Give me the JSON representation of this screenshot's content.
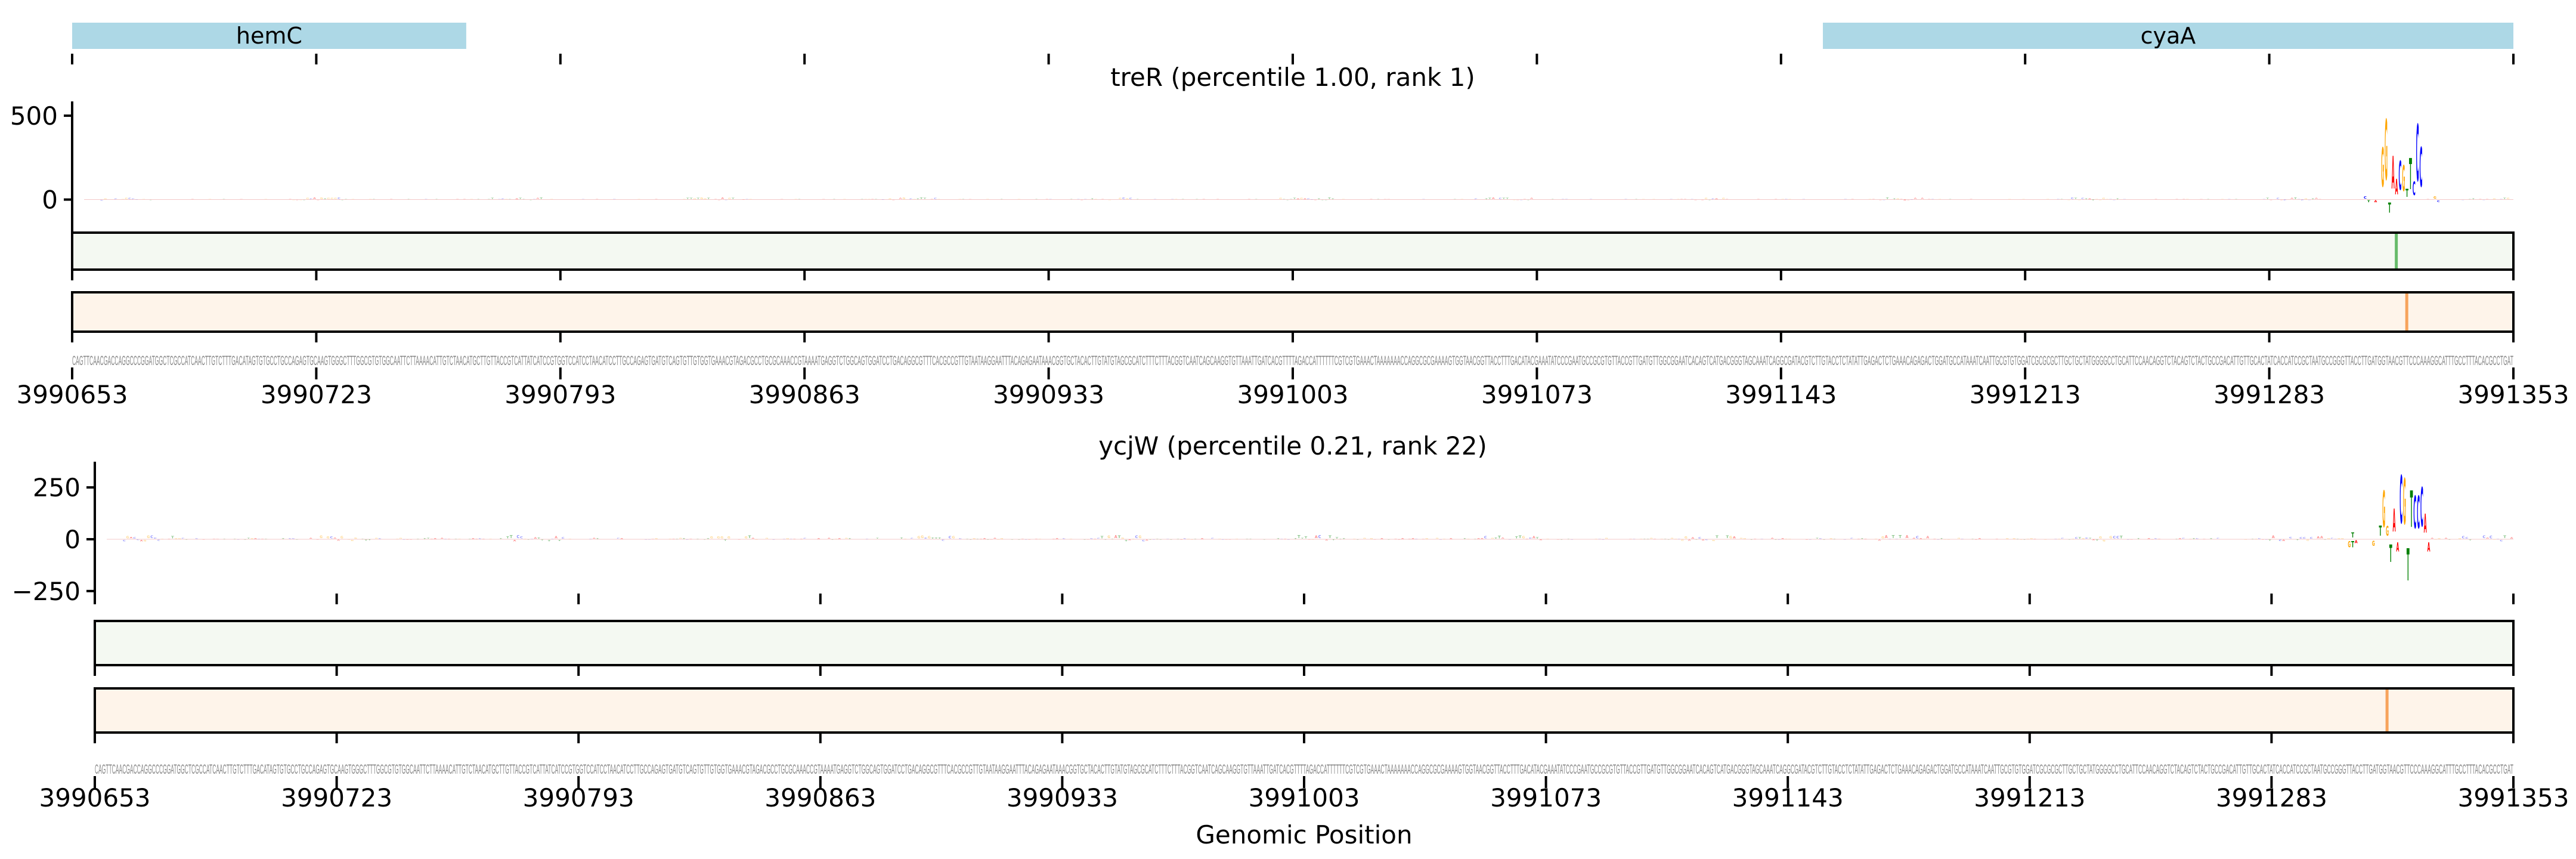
{
  "genes": [
    {
      "name": "hemC",
      "start": 3990653,
      "end": 3990766
    },
    {
      "name": "cyaA",
      "start": 3991155,
      "end": 3991353
    }
  ],
  "xlabel": "Genomic Position",
  "chart_data": {
    "type": "sequence-logo-tracks",
    "x_range": [
      3990653,
      3991353
    ],
    "xticks": [
      3990653,
      3990723,
      3990793,
      3990863,
      3990933,
      3991003,
      3991073,
      3991143,
      3991213,
      3991283,
      3991353
    ],
    "sequence": "CAGTTCAACGACCAGGCCCGGATGGCTCGCCATCAACTTGTCTTTGACATAGTGTGCCTGCCAGAGTGCAAGTGGGCTTTGGCGTGTGGCAATTCTTAAAACATTGTCTAACATGCTTGTTACCGTCATTATCATCCGTGGTCCATCCTAACATCCTTGCCAGAGTGATGTCAGTGTTGTGGTGAAACGTAGACGCCTGCGCAAACCGTAAAATGAGGTCTGGCAGTGGATCCTGACAGGCGTTTCACGCCGTTGTAATAAGGAATTTACAGAGAATAAACGGTGCTACACTTGTATGTAGCGCATCTTTCTTTACGGTCAATCAGCAAGGTGTTAAATTGATCACGTTTTAGACCATTTTTTCGTCGTGAAACTAAAAAAACCAGGCGCGAAAAGTGGTAACGGTTACCTTTGACATACGAAATATCCCGAATGCCGCGTGTTACCGTTGATGTTGGCGGAATCACAGTCATGACGGGTAGCAAATCAGGCGATACGTCTTGTACCTCTATATTGAGACTCTGAAACAGAGACTGGATGCCATAAATCAATTGCGTGTGGATCGCGCGCTTGCTGCTATGGGGCCTGCATTCCAACAGGTCTACAGTCTACTGCCGACATTGTTGCACTATCACCATCCGCTAATGCCGGGTTACCTTGATGGTAACGTTCCCAAAGGCATTTGCCTTTACACGCCTGAT",
    "base_colors": {
      "A": "#ff0000",
      "C": "#0000ff",
      "G": "#ffa500",
      "T": "#008000"
    },
    "track_colors": {
      "green_bg": "#f4f9f2",
      "green_mark": "#66bb6a",
      "orange_bg": "#fef4ea",
      "orange_mark": "#f7a35c"
    },
    "panels": [
      {
        "title": "treR (percentile 1.00, rank 1)",
        "ylim": [
          -190,
          585
        ],
        "yticks": [
          0,
          500
        ],
        "ytick_labels": [
          "0",
          "500"
        ],
        "noise_amplitude": 14,
        "peaks": [
          {
            "offset": 662,
            "base": "G",
            "value": 375
          },
          {
            "offset": 663,
            "base": "G",
            "value": 580
          },
          {
            "offset": 664,
            "base": "T",
            "value": -100
          },
          {
            "offset": 665,
            "base": "A",
            "value": 315
          },
          {
            "offset": 666,
            "base": "A",
            "value": 150
          },
          {
            "offset": 667,
            "base": "C",
            "value": 280
          },
          {
            "offset": 668,
            "base": "G",
            "value": 250
          },
          {
            "offset": 669,
            "base": "T",
            "value": 80
          },
          {
            "offset": 670,
            "base": "T",
            "value": 300
          },
          {
            "offset": 671,
            "base": "C",
            "value": 130
          },
          {
            "offset": 672,
            "base": "C",
            "value": 545
          },
          {
            "offset": 673,
            "base": "C",
            "value": 380
          },
          {
            "offset": 657,
            "base": "C",
            "value": 25
          },
          {
            "offset": 658,
            "base": "T",
            "value": -20
          },
          {
            "offset": 660,
            "base": "A",
            "value": -20
          },
          {
            "offset": 677,
            "base": "G",
            "value": 25
          },
          {
            "offset": 678,
            "base": "C",
            "value": -18
          }
        ],
        "green_marks": [
          666
        ],
        "orange_marks": [
          669
        ]
      },
      {
        "title": "ycjW (percentile 0.21, rank 22)",
        "ylim": [
          -262,
          374
        ],
        "yticks": [
          250,
          0,
          -250
        ],
        "ytick_labels": [
          "250",
          "0",
          "−250"
        ],
        "noise_amplitude": 22,
        "peaks": [
          {
            "offset": 652,
            "base": "G",
            "value": -50
          },
          {
            "offset": 653,
            "base": "T",
            "value": -50
          },
          {
            "offset": 654,
            "base": "A",
            "value": -25
          },
          {
            "offset": 653,
            "base": "T",
            "value": 40
          },
          {
            "offset": 659,
            "base": "G",
            "value": -40
          },
          {
            "offset": 661,
            "base": "T",
            "value": 80
          },
          {
            "offset": 662,
            "base": "G",
            "value": 285
          },
          {
            "offset": 663,
            "base": "G",
            "value": 78
          },
          {
            "offset": 664,
            "base": "T",
            "value": -138
          },
          {
            "offset": 665,
            "base": "A",
            "value": 180
          },
          {
            "offset": 666,
            "base": "A",
            "value": -75
          },
          {
            "offset": 667,
            "base": "C",
            "value": 375
          },
          {
            "offset": 668,
            "base": "G",
            "value": 355
          },
          {
            "offset": 669,
            "base": "T",
            "value": -250
          },
          {
            "offset": 670,
            "base": "T",
            "value": 285
          },
          {
            "offset": 671,
            "base": "C",
            "value": 255
          },
          {
            "offset": 672,
            "base": "C",
            "value": 255
          },
          {
            "offset": 673,
            "base": "C",
            "value": 305
          },
          {
            "offset": 674,
            "base": "A",
            "value": 150
          },
          {
            "offset": 675,
            "base": "A",
            "value": -75
          }
        ],
        "green_marks": [],
        "orange_marks": [
          663
        ]
      }
    ]
  }
}
